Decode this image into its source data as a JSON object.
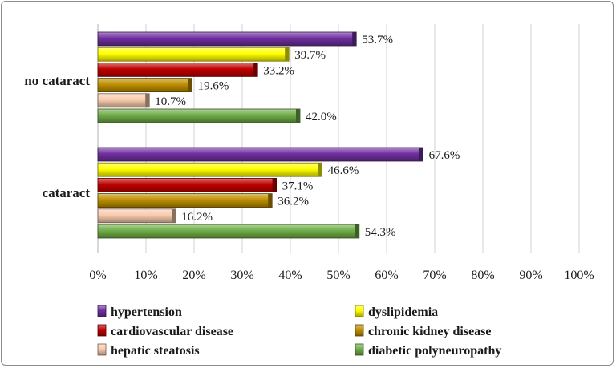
{
  "chart_data": {
    "type": "bar",
    "orientation": "horizontal",
    "title": "",
    "xlabel": "",
    "ylabel": "",
    "xlim": [
      0,
      1
    ],
    "grid": true,
    "legend_position": "bottom",
    "categories": [
      "no cataract",
      "cataract"
    ],
    "x_ticks": [
      "0%",
      "10%",
      "20%",
      "30%",
      "40%",
      "50%",
      "60%",
      "70%",
      "80%",
      "90%",
      "100%"
    ],
    "series": [
      {
        "name": "hypertension",
        "color": "#7030A0",
        "values": [
          0.537,
          0.676
        ],
        "labels": [
          "53.7%",
          "67.6%"
        ]
      },
      {
        "name": "dyslipidemia",
        "color": "#FFFF00",
        "values": [
          0.397,
          0.466
        ],
        "labels": [
          "39.7%",
          "46.6%"
        ]
      },
      {
        "name": "cardiovascular disease",
        "color": "#C00000",
        "values": [
          0.332,
          0.371
        ],
        "labels": [
          "33.2%",
          "37.1%"
        ]
      },
      {
        "name": "chronic kidney disease",
        "color": "#BF8F00",
        "values": [
          0.196,
          0.362
        ],
        "labels": [
          "19.6%",
          "36.2%"
        ]
      },
      {
        "name": "hepatic steatosis",
        "color": "#F8CBAD",
        "values": [
          0.107,
          0.162
        ],
        "labels": [
          "10.7%",
          "16.2%"
        ]
      },
      {
        "name": "diabetic polyneuropathy",
        "color": "#70AD47",
        "values": [
          0.42,
          0.543
        ],
        "labels": [
          "42.0%",
          "54.3%"
        ]
      }
    ]
  }
}
